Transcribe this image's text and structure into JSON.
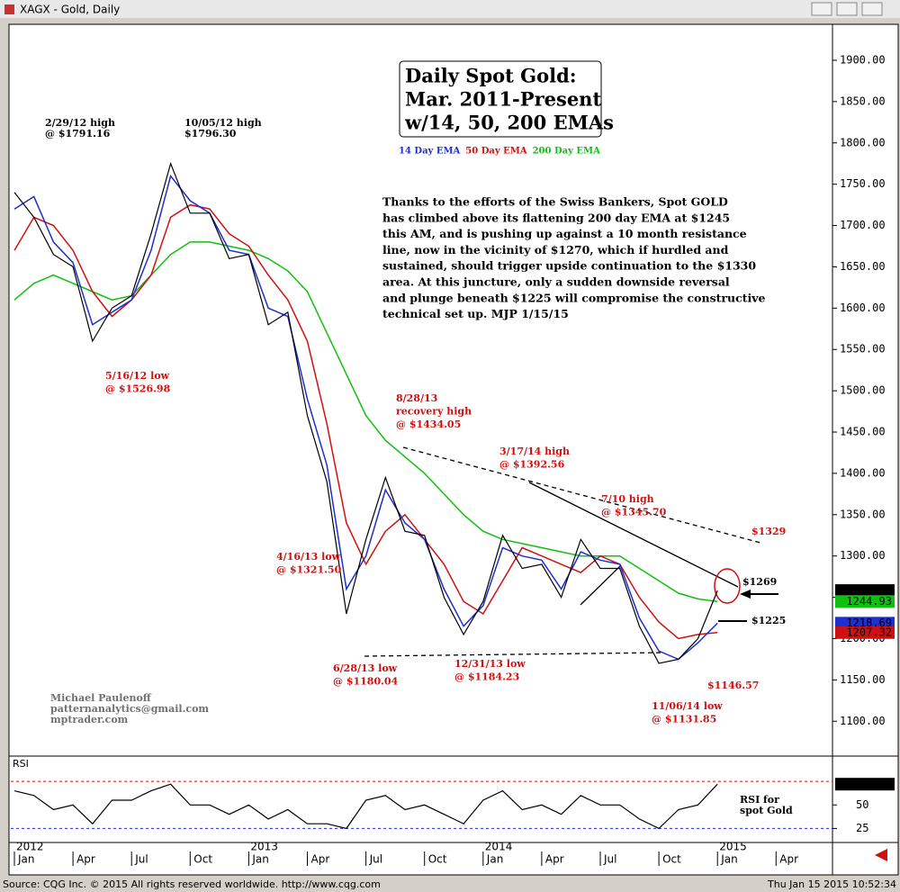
{
  "window_title": "XAGX - Gold, Daily",
  "status_left": "Source: CQG Inc. © 2015 All rights reserved worldwide. http://www.cqg.com",
  "status_right": "Thu Jan 15 2015 10:52:34",
  "chart_data": {
    "type": "line",
    "title_lines": [
      "Daily Spot Gold:",
      "Mar. 2011-Present",
      "w/14, 50, 200 EMAs"
    ],
    "categories": [
      "Jan",
      null,
      null,
      "Apr",
      null,
      null,
      "Jul",
      null,
      null,
      "Oct",
      null,
      null,
      "Jan",
      null,
      null,
      "Apr",
      null,
      null,
      "Jul",
      null,
      null,
      "Oct",
      null,
      null,
      "Jan",
      null,
      null,
      "Apr",
      null,
      null,
      "Jul",
      null,
      null,
      "Oct",
      null,
      null,
      "Jan",
      null,
      null,
      "Apr"
    ],
    "years": [
      "2012",
      null,
      null,
      null,
      null,
      null,
      null,
      null,
      null,
      null,
      null,
      null,
      "2013",
      null,
      null,
      null,
      null,
      null,
      null,
      null,
      null,
      null,
      null,
      null,
      "2014",
      null,
      null,
      null,
      null,
      null,
      null,
      null,
      null,
      null,
      null,
      null,
      "2015",
      null,
      null,
      null
    ],
    "values": [
      1740,
      1710,
      1665,
      1650,
      1560,
      1600,
      1615,
      1690,
      1775,
      1715,
      1715,
      1660,
      1665,
      1580,
      1595,
      1470,
      1390,
      1230,
      1320,
      1395,
      1330,
      1325,
      1250,
      1205,
      1245,
      1325,
      1285,
      1290,
      1250,
      1320,
      1285,
      1285,
      1215,
      1170,
      1175,
      1200,
      1258.18,
      null,
      null,
      null
    ],
    "color": "#000000",
    "series": [
      {
        "name": "14 Day EMA",
        "color": "#1f2fd0",
        "values": [
          1720,
          1735,
          1680,
          1655,
          1580,
          1595,
          1610,
          1670,
          1760,
          1730,
          1715,
          1670,
          1665,
          1600,
          1590,
          1490,
          1410,
          1260,
          1300,
          1380,
          1340,
          1320,
          1260,
          1215,
          1240,
          1310,
          1300,
          1295,
          1260,
          1305,
          1295,
          1290,
          1225,
          1185,
          1175,
          1195,
          1218.69,
          null,
          null,
          null
        ]
      },
      {
        "name": "50 Day EMA",
        "color": "#d01010",
        "values": [
          1670,
          1710,
          1700,
          1670,
          1620,
          1590,
          1610,
          1640,
          1710,
          1725,
          1720,
          1690,
          1675,
          1640,
          1610,
          1560,
          1460,
          1340,
          1290,
          1330,
          1350,
          1320,
          1290,
          1245,
          1230,
          1270,
          1310,
          1300,
          1290,
          1280,
          1300,
          1290,
          1250,
          1220,
          1200,
          1205,
          1207.32,
          null,
          null,
          null
        ]
      },
      {
        "name": "200 Day EMA",
        "color": "#10c010",
        "values": [
          1610,
          1630,
          1640,
          1630,
          1620,
          1610,
          1615,
          1640,
          1665,
          1680,
          1680,
          1675,
          1670,
          1660,
          1645,
          1620,
          1570,
          1520,
          1470,
          1440,
          1420,
          1400,
          1375,
          1350,
          1330,
          1320,
          1315,
          1310,
          1305,
          1300,
          1300,
          1300,
          1285,
          1270,
          1255,
          1248,
          1244.93,
          null,
          null,
          null
        ]
      }
    ],
    "ylim": [
      1060,
      1937
    ],
    "yticks": [
      {
        "value": 1100,
        "label": "1100.00"
      },
      {
        "value": 1150,
        "label": "1150.00"
      },
      {
        "value": 1200,
        "label": "1200.00"
      },
      {
        "value": 1250,
        "label": "1250.00"
      },
      {
        "value": 1300,
        "label": "1300.00"
      },
      {
        "value": 1350,
        "label": "1350.00"
      },
      {
        "value": 1400,
        "label": "1400.00"
      },
      {
        "value": 1450,
        "label": "1450.00"
      },
      {
        "value": 1500,
        "label": "1500.00"
      },
      {
        "value": 1550,
        "label": "1550.00"
      },
      {
        "value": 1600,
        "label": "1600.00"
      },
      {
        "value": 1650,
        "label": "1650.00"
      },
      {
        "value": 1700,
        "label": "1700.00"
      },
      {
        "value": 1750,
        "label": "1750.00"
      },
      {
        "value": 1800,
        "label": "1800.00"
      },
      {
        "value": 1850,
        "label": "1850.00"
      },
      {
        "value": 1900,
        "label": "1900.00"
      }
    ],
    "rsi": {
      "label": "RSI",
      "color": "#000000",
      "values": [
        65,
        60,
        45,
        50,
        30,
        55,
        55,
        65,
        72,
        50,
        50,
        40,
        50,
        35,
        45,
        30,
        30,
        25,
        55,
        60,
        45,
        50,
        40,
        30,
        55,
        65,
        45,
        50,
        40,
        60,
        50,
        50,
        35,
        25,
        45,
        50,
        72.03,
        null,
        null,
        null
      ],
      "ylim": [
        12,
        99
      ],
      "yticks": [
        25,
        50
      ],
      "levels": [
        75,
        25
      ],
      "level_colors": [
        "#d01010",
        "#1f2fd0"
      ]
    },
    "commentary": [
      "Thanks to the efforts of the Swiss Bankers, Spot GOLD",
      "has climbed above its flattening 200 day EMA at $1245",
      "this AM, and is pushing up against a 10 month resistance",
      "line, now in the vicinity of $1270, which if hurdled and",
      "sustained, should trigger upside continuation to the $1330",
      "area. At this juncture, only a sudden downside reversal",
      "and plunge beneath $1225 will compromise the constructive",
      "technical set up.  MJP 1/15/15"
    ],
    "annotations": [
      {
        "lines": [
          "2/29/12 high",
          "@ $1791.16"
        ],
        "color": "#000000"
      },
      {
        "lines": [
          "10/05/12 high",
          "$1796.30"
        ],
        "color": "#000000"
      },
      {
        "lines": [
          "5/16/12 low",
          "@ $1526.98"
        ],
        "color": "#d01010"
      },
      {
        "lines": [
          "8/28/13",
          "recovery high",
          "@ $1434.05"
        ],
        "color": "#d01010"
      },
      {
        "lines": [
          "3/17/14 high",
          "@ $1392.56"
        ],
        "color": "#d01010"
      },
      {
        "lines": [
          "7/10 high",
          "@ $1345.70"
        ],
        "color": "#d01010"
      },
      {
        "lines": [
          "$1329"
        ],
        "color": "#d01010"
      },
      {
        "lines": [
          "$1269"
        ],
        "color": "#000000"
      },
      {
        "lines": [
          "$1225"
        ],
        "color": "#000000"
      },
      {
        "lines": [
          "4/16/13 low",
          "@ $1321.50"
        ],
        "color": "#d01010"
      },
      {
        "lines": [
          "6/28/13 low",
          "@ $1180.04"
        ],
        "color": "#d01010"
      },
      {
        "lines": [
          "12/31/13 low",
          "@ $1184.23"
        ],
        "color": "#d01010"
      },
      {
        "lines": [
          "$1146.57"
        ],
        "color": "#d01010"
      },
      {
        "lines": [
          "11/06/14 low",
          "@ $1131.85"
        ],
        "color": "#d01010"
      },
      {
        "lines": [
          "RSI for",
          "spot Gold"
        ],
        "color": "#000000"
      },
      {
        "lines": [
          "Michael Paulenoff",
          "patternanalytics@gmail.com",
          "mptrader.com"
        ],
        "color": "#707070"
      }
    ]
  }
}
